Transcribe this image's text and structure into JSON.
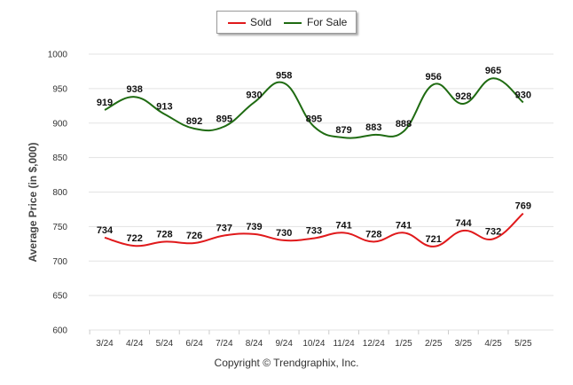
{
  "chart_data": {
    "type": "line",
    "categories": [
      "3/24",
      "4/24",
      "5/24",
      "6/24",
      "7/24",
      "8/24",
      "9/24",
      "10/24",
      "11/24",
      "12/24",
      "1/25",
      "2/25",
      "3/25",
      "4/25",
      "5/25"
    ],
    "series": [
      {
        "name": "Sold",
        "color": "#e0191b",
        "values": [
          734,
          722,
          728,
          726,
          737,
          739,
          730,
          733,
          741,
          728,
          741,
          721,
          744,
          732,
          769
        ]
      },
      {
        "name": "For Sale",
        "color": "#1f6b12",
        "values": [
          919,
          938,
          913,
          892,
          895,
          930,
          958,
          895,
          879,
          883,
          888,
          956,
          928,
          965,
          930
        ]
      }
    ],
    "ylabel": "Average Price (in $,000)",
    "xlabel": "",
    "ylim": [
      600,
      1000
    ],
    "yticks": [
      600,
      650,
      700,
      750,
      800,
      850,
      900,
      950,
      1000
    ],
    "grid": true,
    "legend_position": "top-center"
  },
  "footer": {
    "copyright": "Copyright © Trendgraphix, Inc."
  }
}
